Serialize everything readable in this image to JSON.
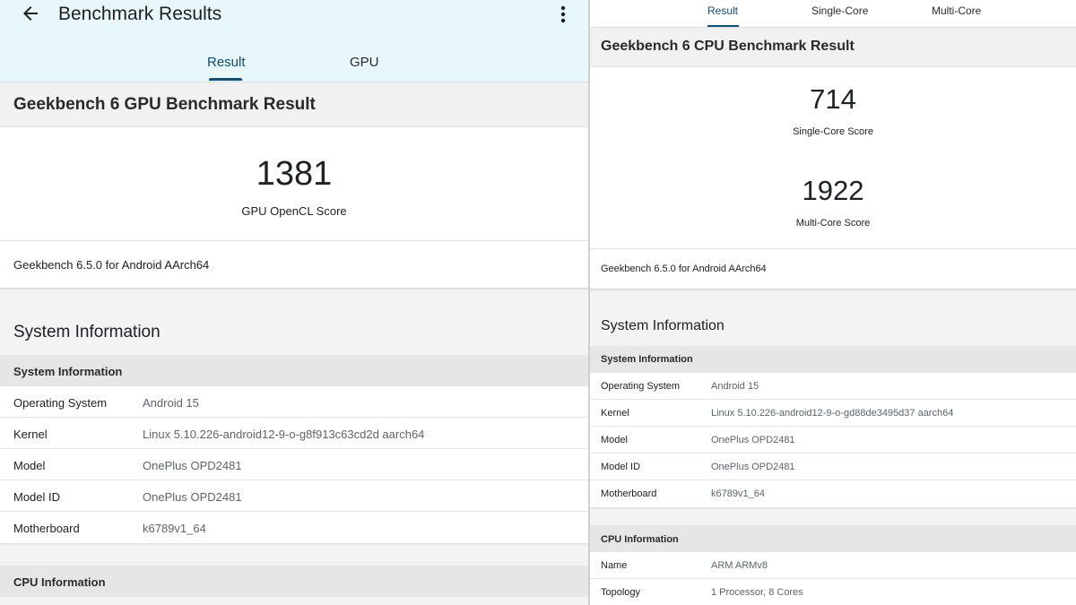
{
  "gpu_screen": {
    "appbar": {
      "title": "Benchmark Results",
      "back_icon": "arrow-left-icon",
      "menu_icon": "more-vert-icon"
    },
    "tabs": [
      {
        "label": "Result",
        "active": true
      },
      {
        "label": "GPU",
        "active": false
      }
    ],
    "result_title": "Geekbench 6 GPU Benchmark Result",
    "score": {
      "value": "1381",
      "label": "GPU OpenCL Score"
    },
    "version": "Geekbench 6.5.0 for Android AArch64",
    "system_info_heading": "System Information",
    "system_info": {
      "title": "System Information",
      "rows": [
        {
          "key": "Operating System",
          "value": "Android 15"
        },
        {
          "key": "Kernel",
          "value": "Linux 5.10.226-android12-9-o-g8f913c63cd2d aarch64"
        },
        {
          "key": "Model",
          "value": "OnePlus OPD2481"
        },
        {
          "key": "Model ID",
          "value": "OnePlus OPD2481"
        },
        {
          "key": "Motherboard",
          "value": "k6789v1_64"
        }
      ]
    },
    "cpu_info": {
      "title": "CPU Information"
    }
  },
  "cpu_screen": {
    "tabs": [
      {
        "label": "Result",
        "active": true
      },
      {
        "label": "Single-Core",
        "active": false
      },
      {
        "label": "Multi-Core",
        "active": false
      }
    ],
    "result_title": "Geekbench 6 CPU Benchmark Result",
    "scores": [
      {
        "value": "714",
        "label": "Single-Core Score"
      },
      {
        "value": "1922",
        "label": "Multi-Core Score"
      }
    ],
    "version": "Geekbench 6.5.0 for Android AArch64",
    "system_info_heading": "System Information",
    "system_info": {
      "title": "System Information",
      "rows": [
        {
          "key": "Operating System",
          "value": "Android 15"
        },
        {
          "key": "Kernel",
          "value": "Linux 5.10.226-android12-9-o-gd88de3495d37 aarch64"
        },
        {
          "key": "Model",
          "value": "OnePlus OPD2481"
        },
        {
          "key": "Model ID",
          "value": "OnePlus OPD2481"
        },
        {
          "key": "Motherboard",
          "value": "k6789v1_64"
        }
      ]
    },
    "cpu_info": {
      "title": "CPU Information",
      "rows": [
        {
          "key": "Name",
          "value": "ARM ARMv8"
        },
        {
          "key": "Topology",
          "value": "1 Processor, 8 Cores"
        }
      ]
    }
  },
  "colors": {
    "appbar_bg": "#e8f7fb",
    "accent": "#0d4f80",
    "section_bg": "#f1f1f1",
    "subhead_bg": "#e6e6e6"
  }
}
